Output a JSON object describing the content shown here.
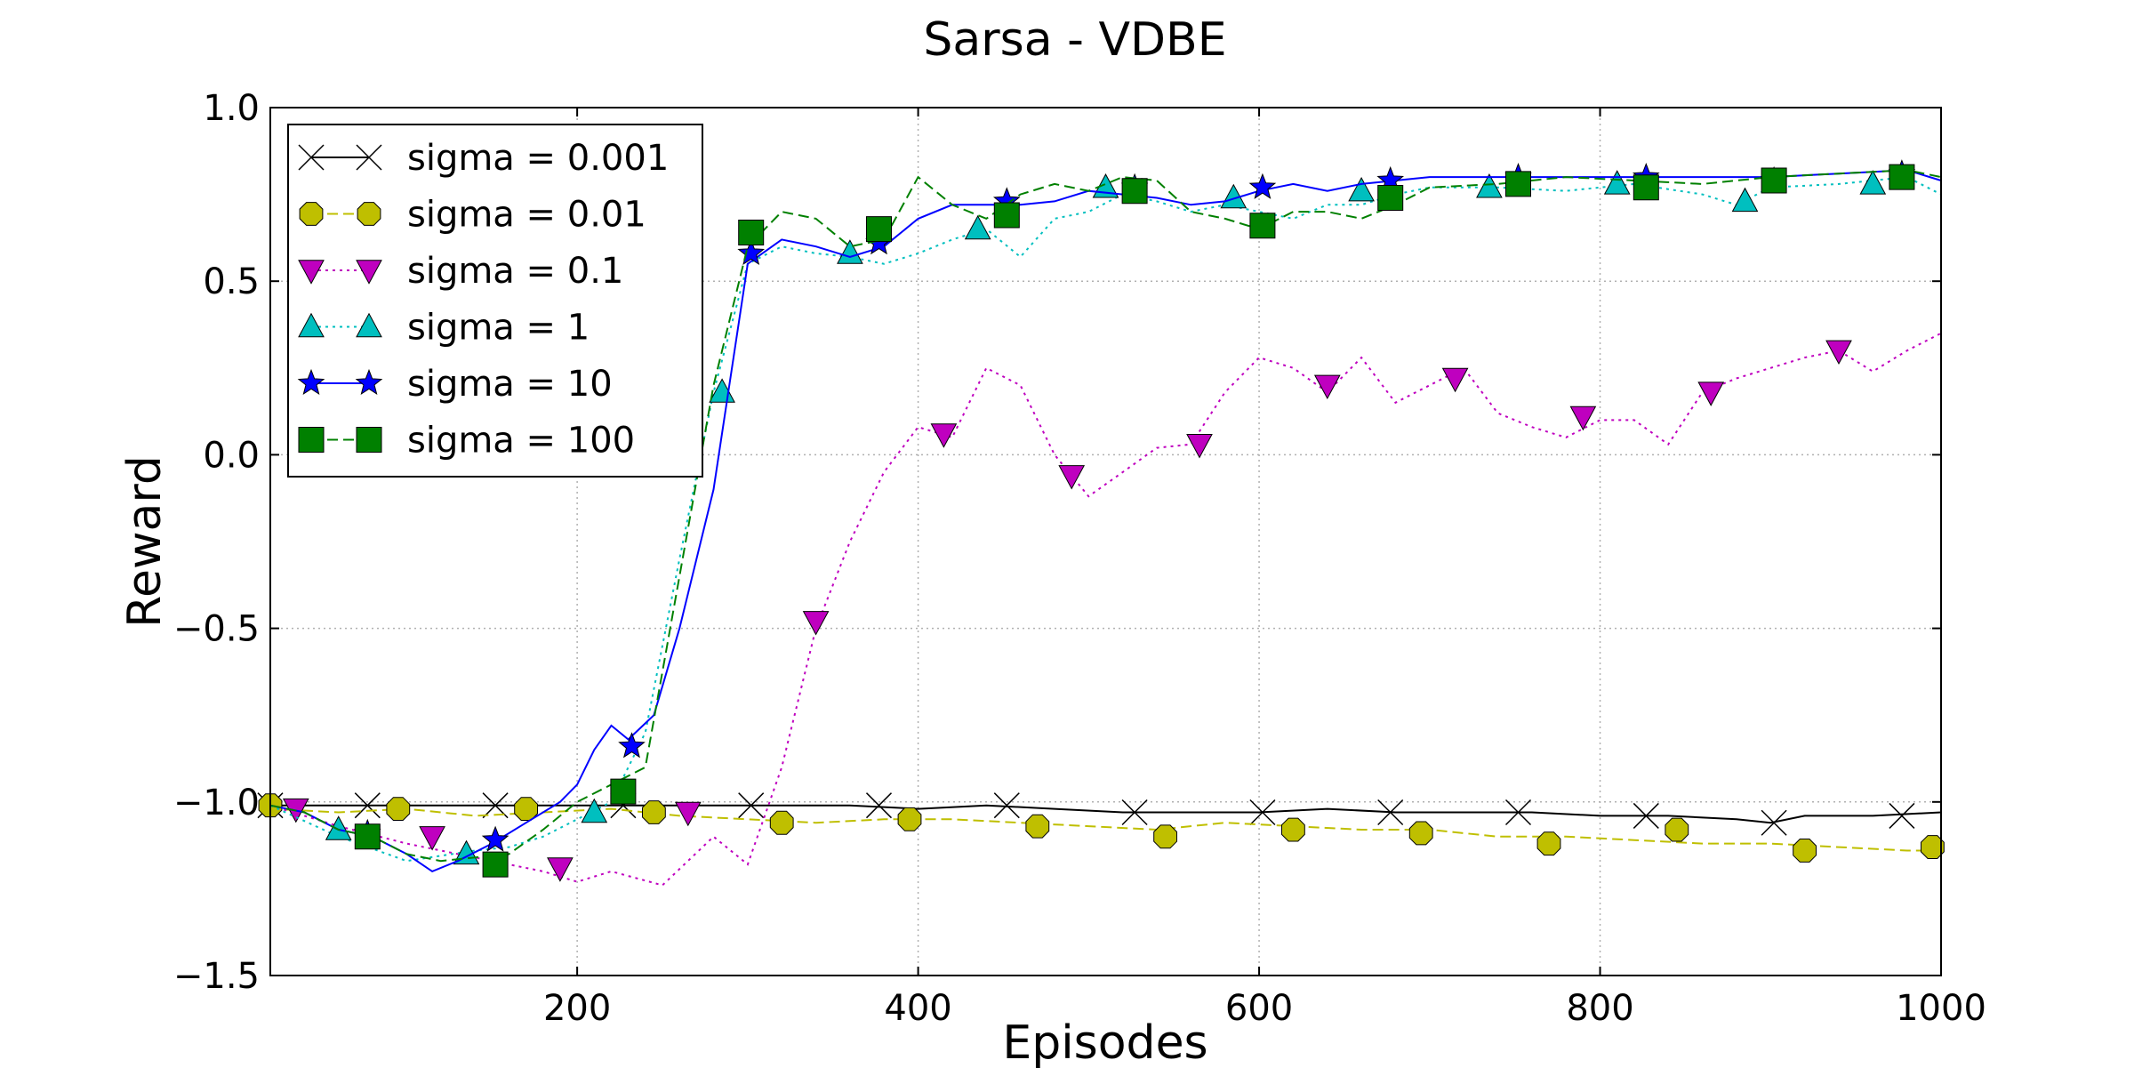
{
  "chart_data": {
    "type": "line",
    "title": "Sarsa - VDBE",
    "xlabel": "Episodes",
    "ylabel": "Reward",
    "xlim": [
      20,
      1000
    ],
    "ylim": [
      -1.5,
      1.0
    ],
    "xticks": [
      200,
      400,
      600,
      800,
      1000
    ],
    "yticks": [
      -1.5,
      -1.0,
      -0.5,
      0.0,
      0.5,
      1.0
    ],
    "xtick_labels": [
      "200",
      "400",
      "600",
      "800",
      "1000"
    ],
    "ytick_labels": [
      "−1.5",
      "−1.0",
      "−0.5",
      "0.0",
      "0.5",
      "1.0"
    ],
    "grid": true,
    "legend_position": "upper-left",
    "series": [
      {
        "name": "sigma = 0.001",
        "color": "#000000",
        "marker": "x",
        "line_style": "solid",
        "x": [
          20,
          40,
          60,
          80,
          100,
          120,
          140,
          160,
          180,
          200,
          240,
          280,
          320,
          360,
          400,
          440,
          480,
          520,
          560,
          600,
          640,
          680,
          720,
          760,
          800,
          840,
          880,
          900,
          920,
          960,
          1000
        ],
        "y": [
          -1.01,
          -1.01,
          -1.01,
          -1.01,
          -1.01,
          -1.01,
          -1.01,
          -1.01,
          -1.01,
          -1.01,
          -1.01,
          -1.01,
          -1.01,
          -1.01,
          -1.02,
          -1.01,
          -1.02,
          -1.03,
          -1.03,
          -1.03,
          -1.02,
          -1.03,
          -1.03,
          -1.03,
          -1.04,
          -1.04,
          -1.05,
          -1.06,
          -1.04,
          -1.04,
          -1.03
        ],
        "marker_x": [
          20,
          77,
          152,
          227,
          302,
          377,
          452,
          527,
          602,
          677,
          752,
          827,
          902,
          977
        ],
        "marker_y": [
          -1.01,
          -1.01,
          -1.01,
          -1.01,
          -1.01,
          -1.01,
          -1.01,
          -1.03,
          -1.03,
          -1.03,
          -1.03,
          -1.04,
          -1.06,
          -1.04
        ]
      },
      {
        "name": "sigma = 0.01",
        "color": "#bfbf00",
        "marker": "octagon",
        "line_style": "dashed",
        "x": [
          20,
          60,
          100,
          140,
          180,
          220,
          260,
          300,
          340,
          380,
          420,
          460,
          500,
          540,
          580,
          620,
          660,
          700,
          740,
          780,
          820,
          860,
          900,
          940,
          980,
          1000
        ],
        "y": [
          -1.02,
          -1.03,
          -1.02,
          -1.04,
          -1.03,
          -1.02,
          -1.04,
          -1.05,
          -1.06,
          -1.05,
          -1.05,
          -1.06,
          -1.07,
          -1.08,
          -1.06,
          -1.07,
          -1.08,
          -1.08,
          -1.1,
          -1.1,
          -1.11,
          -1.12,
          -1.12,
          -1.13,
          -1.14,
          -1.14
        ],
        "marker_x": [
          20,
          95,
          170,
          245,
          320,
          395,
          470,
          545,
          620,
          695,
          770,
          845,
          920,
          995
        ],
        "marker_y": [
          -1.01,
          -1.02,
          -1.02,
          -1.03,
          -1.06,
          -1.05,
          -1.07,
          -1.1,
          -1.08,
          -1.09,
          -1.12,
          -1.08,
          -1.14,
          -1.13
        ]
      },
      {
        "name": "sigma = 0.1",
        "color": "#bf00bf",
        "marker": "triangle_down",
        "line_style": "dotted",
        "x": [
          20,
          60,
          100,
          140,
          180,
          200,
          220,
          250,
          280,
          300,
          320,
          340,
          360,
          380,
          400,
          420,
          440,
          460,
          480,
          500,
          520,
          540,
          560,
          580,
          600,
          620,
          640,
          660,
          680,
          700,
          720,
          740,
          760,
          780,
          800,
          820,
          840,
          860,
          880,
          900,
          920,
          940,
          960,
          980,
          1000
        ],
        "y": [
          -1.01,
          -1.07,
          -1.12,
          -1.16,
          -1.2,
          -1.23,
          -1.2,
          -1.24,
          -1.1,
          -1.18,
          -0.9,
          -0.5,
          -0.25,
          -0.05,
          0.08,
          0.05,
          0.25,
          0.2,
          0.0,
          -0.12,
          -0.05,
          0.02,
          0.03,
          0.18,
          0.28,
          0.25,
          0.18,
          0.28,
          0.15,
          0.2,
          0.25,
          0.12,
          0.08,
          0.05,
          0.1,
          0.1,
          0.03,
          0.18,
          0.22,
          0.25,
          0.28,
          0.3,
          0.24,
          0.3,
          0.35
        ],
        "marker_x": [
          35,
          115,
          190,
          265,
          340,
          415,
          490,
          565,
          640,
          715,
          790,
          865,
          940
        ],
        "marker_y": [
          -1.02,
          -1.1,
          -1.19,
          -1.03,
          -0.48,
          0.06,
          -0.06,
          0.03,
          0.2,
          0.22,
          0.11,
          0.18,
          0.3
        ]
      },
      {
        "name": "sigma = 1",
        "color": "#00bfbf",
        "marker": "triangle_up",
        "line_style": "dotted",
        "x": [
          20,
          60,
          100,
          140,
          160,
          180,
          200,
          220,
          240,
          260,
          280,
          300,
          320,
          340,
          360,
          380,
          400,
          420,
          440,
          460,
          480,
          500,
          520,
          540,
          560,
          580,
          600,
          620,
          640,
          660,
          680,
          700,
          740,
          780,
          820,
          860,
          880,
          900,
          940,
          980,
          1000
        ],
        "y": [
          -1.01,
          -1.1,
          -1.17,
          -1.14,
          -1.13,
          -1.1,
          -1.05,
          -1.0,
          -0.8,
          -0.3,
          0.18,
          0.55,
          0.6,
          0.58,
          0.57,
          0.55,
          0.58,
          0.62,
          0.65,
          0.57,
          0.68,
          0.7,
          0.75,
          0.73,
          0.7,
          0.72,
          0.7,
          0.68,
          0.72,
          0.72,
          0.75,
          0.77,
          0.77,
          0.76,
          0.78,
          0.75,
          0.72,
          0.77,
          0.78,
          0.8,
          0.75
        ],
        "marker_x": [
          60,
          135,
          210,
          285,
          360,
          435,
          510,
          585,
          660,
          735,
          810,
          885,
          960
        ],
        "marker_y": [
          -1.08,
          -1.15,
          -1.03,
          0.18,
          0.58,
          0.65,
          0.77,
          0.74,
          0.76,
          0.77,
          0.78,
          0.73,
          0.78
        ]
      },
      {
        "name": "sigma = 10",
        "color": "#0000ff",
        "marker": "star",
        "line_style": "solid",
        "x": [
          20,
          40,
          60,
          80,
          100,
          115,
          130,
          150,
          170,
          190,
          200,
          210,
          220,
          230,
          245,
          260,
          280,
          300,
          320,
          340,
          360,
          380,
          400,
          420,
          440,
          460,
          480,
          500,
          520,
          540,
          560,
          580,
          600,
          620,
          640,
          660,
          680,
          700,
          740,
          780,
          820,
          860,
          900,
          940,
          980,
          1000
        ],
        "y": [
          -1.01,
          -1.03,
          -1.08,
          -1.1,
          -1.15,
          -1.2,
          -1.17,
          -1.12,
          -1.06,
          -1.0,
          -0.95,
          -0.85,
          -0.78,
          -0.82,
          -0.75,
          -0.5,
          -0.1,
          0.55,
          0.62,
          0.6,
          0.57,
          0.6,
          0.68,
          0.72,
          0.72,
          0.72,
          0.73,
          0.76,
          0.75,
          0.74,
          0.72,
          0.73,
          0.76,
          0.78,
          0.76,
          0.78,
          0.79,
          0.8,
          0.8,
          0.8,
          0.8,
          0.8,
          0.8,
          0.81,
          0.82,
          0.79
        ],
        "marker_x": [
          77,
          152,
          232,
          302,
          377,
          452,
          527,
          602,
          677,
          752,
          827,
          902,
          977
        ],
        "marker_y": [
          -1.09,
          -1.11,
          -0.84,
          0.58,
          0.61,
          0.73,
          0.77,
          0.77,
          0.79,
          0.8,
          0.8,
          0.79,
          0.81
        ]
      },
      {
        "name": "sigma = 100",
        "color": "#008000",
        "marker": "square",
        "line_style": "dashed",
        "x": [
          20,
          40,
          60,
          80,
          100,
          120,
          140,
          160,
          180,
          200,
          220,
          240,
          260,
          280,
          300,
          320,
          340,
          360,
          380,
          400,
          420,
          440,
          460,
          480,
          500,
          520,
          540,
          560,
          580,
          600,
          620,
          640,
          660,
          680,
          700,
          740,
          780,
          820,
          860,
          900,
          940,
          980,
          1000
        ],
        "y": [
          -1.01,
          -1.03,
          -1.08,
          -1.1,
          -1.15,
          -1.17,
          -1.16,
          -1.15,
          -1.08,
          -1.0,
          -0.95,
          -0.9,
          -0.35,
          0.2,
          0.6,
          0.7,
          0.68,
          0.6,
          0.62,
          0.8,
          0.72,
          0.68,
          0.75,
          0.78,
          0.76,
          0.8,
          0.79,
          0.7,
          0.68,
          0.65,
          0.7,
          0.7,
          0.68,
          0.72,
          0.77,
          0.78,
          0.8,
          0.79,
          0.78,
          0.8,
          0.81,
          0.82,
          0.8
        ],
        "marker_x": [
          77,
          152,
          227,
          302,
          377,
          452,
          527,
          602,
          677,
          752,
          827,
          902,
          977
        ],
        "marker_y": [
          -1.1,
          -1.18,
          -0.97,
          0.64,
          0.65,
          0.69,
          0.76,
          0.66,
          0.74,
          0.78,
          0.77,
          0.79,
          0.8
        ]
      }
    ]
  }
}
